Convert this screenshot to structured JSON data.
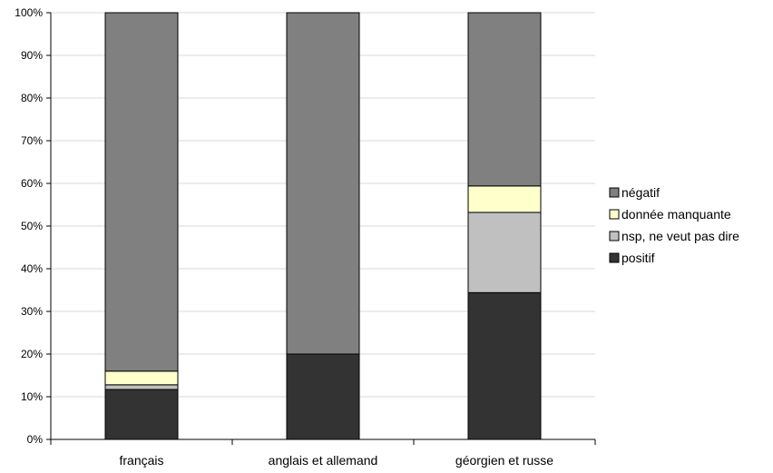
{
  "chart_data": {
    "type": "bar",
    "stacked": true,
    "percent": true,
    "categories": [
      "français",
      "anglais et allemand",
      "géorgien et russe"
    ],
    "series": [
      {
        "name": "positif",
        "values": [
          11.7,
          20.0,
          34.4
        ],
        "color": "#333333"
      },
      {
        "name": "nsp, ne veut pas dire",
        "values": [
          1.1,
          0.0,
          18.8
        ],
        "color": "#c0c0c0"
      },
      {
        "name": "donnée manquante",
        "values": [
          3.2,
          0.0,
          6.2
        ],
        "color": "#ffffcc"
      },
      {
        "name": "négatif",
        "values": [
          84.0,
          80.0,
          40.6
        ],
        "color": "#808080"
      }
    ],
    "ylim": [
      0,
      100
    ],
    "y_ticks": [
      "0%",
      "10%",
      "20%",
      "30%",
      "40%",
      "50%",
      "60%",
      "70%",
      "80%",
      "90%",
      "100%"
    ],
    "legend_order": [
      "négatif",
      "donnée manquante",
      "nsp, ne veut pas dire",
      "positif"
    ],
    "legend_position": "right",
    "grid": true,
    "title": "",
    "xlabel": "",
    "ylabel": ""
  }
}
